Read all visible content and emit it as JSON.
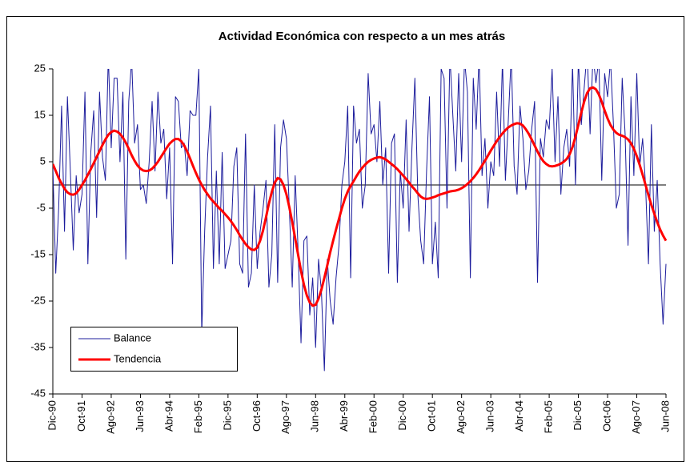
{
  "chart_data": {
    "type": "line",
    "title": "Actividad Económica con respecto a un mes atrás",
    "categories": [
      "Dic-90",
      null,
      null,
      null,
      null,
      null,
      null,
      null,
      null,
      null,
      "Oct-91",
      null,
      null,
      null,
      null,
      null,
      null,
      null,
      null,
      null,
      "Ago-92",
      null,
      null,
      null,
      null,
      null,
      null,
      null,
      null,
      null,
      "Jun-93",
      null,
      null,
      null,
      null,
      null,
      null,
      null,
      null,
      null,
      "Abr-94",
      null,
      null,
      null,
      null,
      null,
      null,
      null,
      null,
      null,
      "Feb-95",
      null,
      null,
      null,
      null,
      null,
      null,
      null,
      null,
      null,
      "Dic-95",
      null,
      null,
      null,
      null,
      null,
      null,
      null,
      null,
      null,
      "Oct-96",
      null,
      null,
      null,
      null,
      null,
      null,
      null,
      null,
      null,
      "Ago-97",
      null,
      null,
      null,
      null,
      null,
      null,
      null,
      null,
      null,
      "Jun-98",
      null,
      null,
      null,
      null,
      null,
      null,
      null,
      null,
      null,
      "Abr-99",
      null,
      null,
      null,
      null,
      null,
      null,
      null,
      null,
      null,
      "Feb-00",
      null,
      null,
      null,
      null,
      null,
      null,
      null,
      null,
      null,
      "Dic-00",
      null,
      null,
      null,
      null,
      null,
      null,
      null,
      null,
      null,
      "Oct-01",
      null,
      null,
      null,
      null,
      null,
      null,
      null,
      null,
      null,
      "Ago-02",
      null,
      null,
      null,
      null,
      null,
      null,
      null,
      null,
      null,
      "Jun-03",
      null,
      null,
      null,
      null,
      null,
      null,
      null,
      null,
      null,
      "Abr-04",
      null,
      null,
      null,
      null,
      null,
      null,
      null,
      null,
      null,
      "Feb-05",
      null,
      null,
      null,
      null,
      null,
      null,
      null,
      null,
      null,
      "Dic-05",
      null,
      null,
      null,
      null,
      null,
      null,
      null,
      null,
      null,
      "Oct-06",
      null,
      null,
      null,
      null,
      null,
      null,
      null,
      null,
      null,
      "Ago-07",
      null,
      null,
      null,
      null,
      null,
      null,
      null,
      null,
      null,
      "Jun-08"
    ],
    "series": [
      {
        "name": "Balance",
        "color": "#1c1c9c",
        "values": [
          4,
          -19,
          -5,
          17,
          -10,
          19,
          3,
          -14,
          2,
          -6,
          -2,
          20,
          -17,
          7,
          16,
          -7,
          20,
          6,
          1,
          28,
          8,
          23,
          23,
          5,
          20,
          -16,
          18,
          27,
          9,
          13,
          -1,
          0,
          -4,
          5,
          18,
          3,
          20,
          9,
          12,
          -3,
          8,
          -17,
          19,
          18,
          8,
          9,
          2,
          16,
          15,
          15,
          25,
          -32,
          -10,
          6,
          17,
          -18,
          3,
          -17,
          7,
          -18,
          -15,
          -12,
          4,
          8,
          -17,
          -19,
          11,
          -22,
          -19,
          0,
          -18,
          -10,
          -5,
          1,
          -22,
          -15,
          13,
          -21,
          8,
          14,
          10,
          -5,
          -22,
          2,
          -14,
          -34,
          -12,
          -11,
          -28,
          -20,
          -35,
          -16,
          -23,
          -40,
          -16,
          -25,
          -30,
          -20,
          -13,
          0,
          5,
          17,
          -20,
          17,
          9,
          12,
          -5,
          0,
          24,
          11,
          13,
          5,
          18,
          0,
          8,
          -19,
          9,
          11,
          -21,
          3,
          -5,
          14,
          -10,
          8,
          23,
          -2,
          -12,
          -17,
          3,
          19,
          -17,
          -8,
          -20,
          25,
          23,
          -5,
          28,
          15,
          3,
          24,
          5,
          27,
          20,
          -20,
          23,
          12,
          28,
          2,
          10,
          -5,
          5,
          2,
          20,
          4,
          27,
          1,
          14,
          28,
          4,
          -2,
          17,
          10,
          -1,
          3,
          12,
          18,
          -21,
          10,
          6,
          14,
          12,
          25,
          5,
          19,
          -2,
          8,
          12,
          4,
          26,
          0,
          27,
          13,
          21,
          29,
          11,
          28,
          22,
          27,
          1,
          24,
          19,
          27,
          13,
          -5,
          -2,
          23,
          11,
          -13,
          19,
          2,
          24,
          4,
          10,
          0,
          -17,
          13,
          -10,
          1,
          -17,
          -30,
          -17
        ]
      },
      {
        "name": "Tendencia",
        "color": "#ff0000",
        "values": [
          4.5,
          3,
          1.5,
          0.3,
          -0.8,
          -1.6,
          -2,
          -2.1,
          -1.8,
          -1,
          0,
          1,
          2.2,
          3.4,
          4.7,
          6,
          7.3,
          8.6,
          9.8,
          10.8,
          11.4,
          11.7,
          11.5,
          11,
          10.2,
          9.1,
          7.8,
          6.4,
          5.2,
          4.2,
          3.5,
          3.1,
          3,
          3.1,
          3.5,
          4.2,
          5,
          6,
          7,
          8,
          8.9,
          9.5,
          9.9,
          9.9,
          9.4,
          8.5,
          7.2,
          5.7,
          4.1,
          2.6,
          1.2,
          0,
          -1.1,
          -2,
          -2.9,
          -3.6,
          -4.3,
          -5,
          -5.6,
          -6.3,
          -7,
          -7.8,
          -8.7,
          -9.7,
          -10.8,
          -11.8,
          -12.7,
          -13.4,
          -13.9,
          -14,
          -13.5,
          -12,
          -9.8,
          -7,
          -4,
          -1.5,
          0.5,
          1.5,
          1.2,
          0,
          -2,
          -4.8,
          -8,
          -11.5,
          -15,
          -18.5,
          -21.5,
          -23.8,
          -25.3,
          -26,
          -25.8,
          -24.5,
          -22.5,
          -20,
          -17.3,
          -14.5,
          -12,
          -9.6,
          -7.3,
          -5,
          -3,
          -1.4,
          -0.2,
          0.8,
          1.9,
          2.9,
          3.7,
          4.4,
          5,
          5.4,
          5.7,
          5.9,
          6,
          5.8,
          5.5,
          5,
          4.5,
          4,
          3.4,
          2.7,
          2,
          1.3,
          0.5,
          -0.3,
          -1,
          -1.8,
          -2.5,
          -2.9,
          -3,
          -2.9,
          -2.7,
          -2.5,
          -2.2,
          -2,
          -1.8,
          -1.6,
          -1.4,
          -1.3,
          -1.2,
          -1,
          -0.7,
          -0.3,
          0.2,
          0.8,
          1.5,
          2.3,
          3.2,
          4.2,
          5.2,
          6.3,
          7.4,
          8.4,
          9.4,
          10.3,
          11.1,
          11.8,
          12.4,
          12.8,
          13.1,
          13.3,
          13.2,
          12.8,
          12,
          11,
          9.8,
          8.5,
          7.2,
          6,
          5.1,
          4.5,
          4.1,
          4,
          4.1,
          4.3,
          4.6,
          5,
          5.6,
          6.6,
          8.2,
          10.4,
          13,
          15.6,
          18,
          19.8,
          20.8,
          21,
          20.6,
          19.5,
          17.9,
          16,
          14.3,
          12.9,
          11.9,
          11.2,
          10.8,
          10.6,
          10.3,
          9.8,
          9,
          7.8,
          6.2,
          4.3,
          2.2,
          0,
          -2.2,
          -4.3,
          -6.2,
          -8,
          -9.6,
          -10.9,
          -12
        ]
      }
    ],
    "ylim": [
      -45,
      25
    ],
    "yticks": [
      -45,
      -35,
      -25,
      -15,
      -5,
      5,
      15,
      25
    ],
    "grid": false,
    "legend": "lower left"
  }
}
